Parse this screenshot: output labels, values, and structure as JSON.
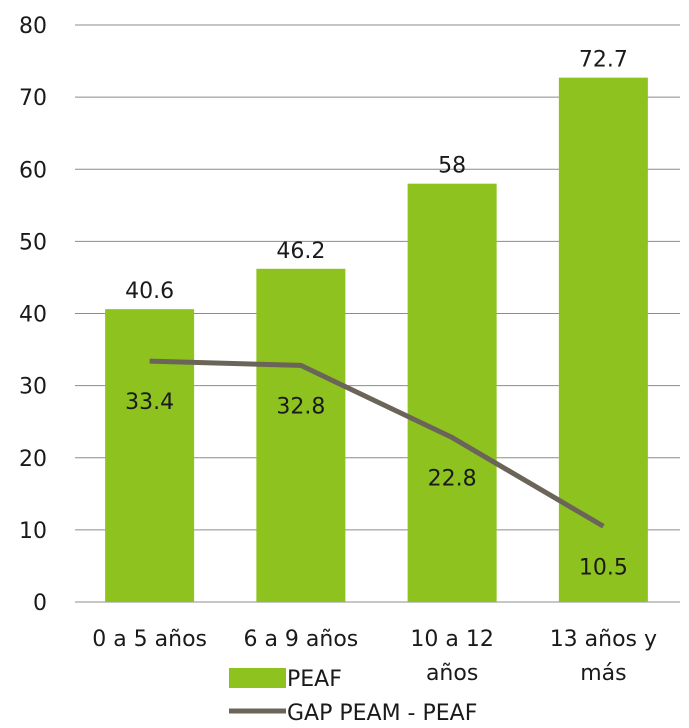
{
  "chart_data": {
    "type": "bar",
    "categories": [
      "0 a 5 años",
      "6 a 9 años",
      "10 a 12 años",
      "13 años y más"
    ],
    "category_lines": [
      [
        "0 a 5 años"
      ],
      [
        "6 a 9 años"
      ],
      [
        "10 a 12",
        "años"
      ],
      [
        "13 años y",
        "más"
      ]
    ],
    "series": [
      {
        "name": "PEAF",
        "type": "bar",
        "color": "#8DC21F",
        "values": [
          40.6,
          46.2,
          58,
          72.7
        ],
        "labels": [
          "40.6",
          "46.2",
          "58",
          "72.7"
        ]
      },
      {
        "name": "GAP PEAM - PEAF",
        "type": "line",
        "color": "#6B6458",
        "values": [
          33.4,
          32.8,
          22.8,
          10.5
        ],
        "labels": [
          "33.4",
          "32.8",
          "22.8",
          "10.5"
        ]
      }
    ],
    "ylim": [
      0,
      80
    ],
    "yticks": [
      "0",
      "10",
      "20",
      "30",
      "40",
      "50",
      "60",
      "70",
      "80"
    ],
    "grid": true,
    "legend_position": "bottom",
    "title": "",
    "xlabel": "",
    "ylabel": ""
  }
}
